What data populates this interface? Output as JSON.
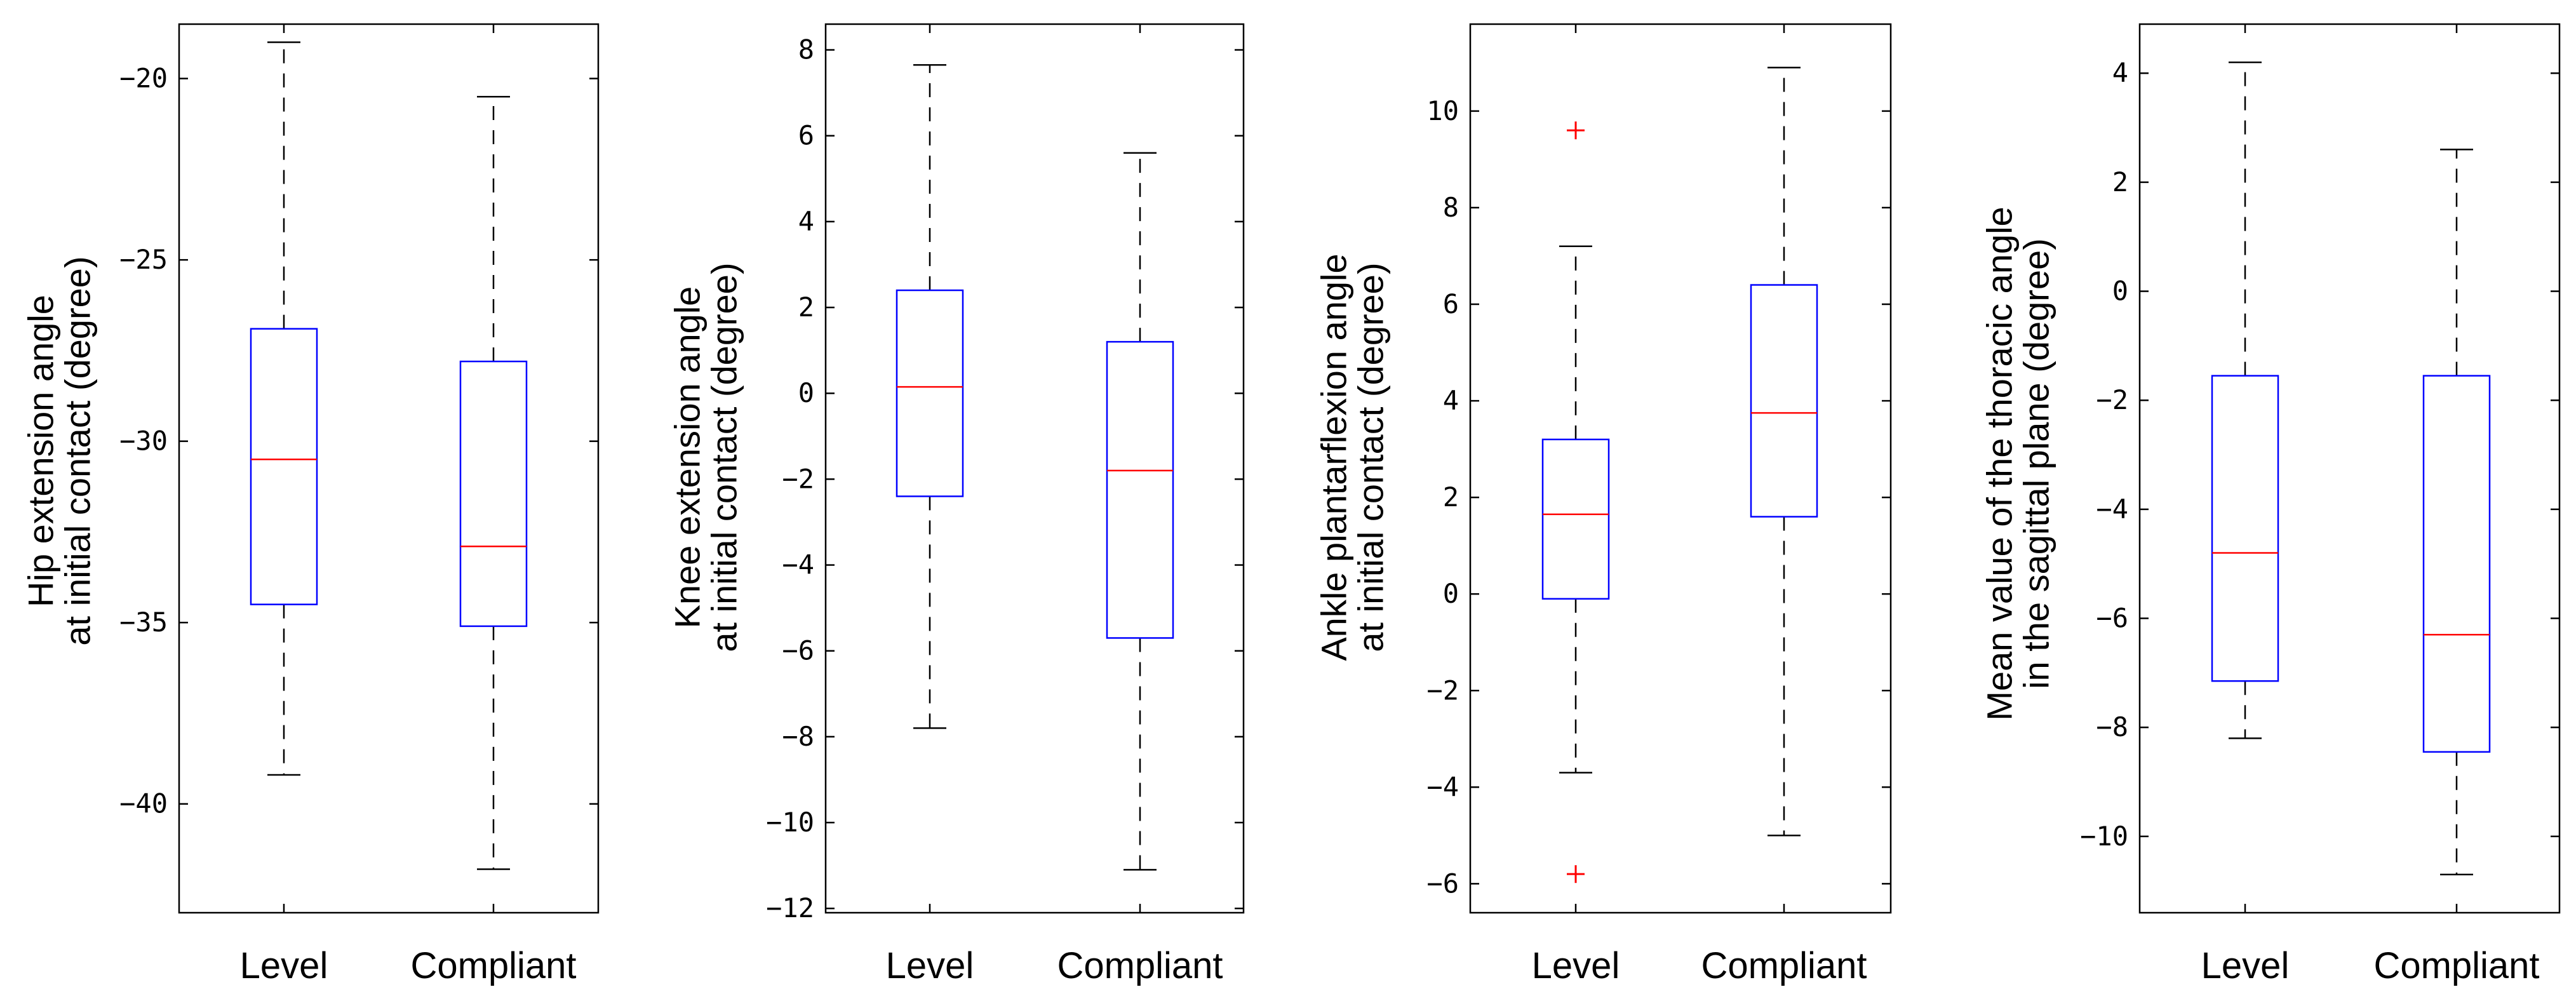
{
  "chart_data": [
    {
      "type": "box",
      "title": "",
      "ylabel": [
        "Hip extension angle",
        "at initial contact (degree)"
      ],
      "xlabel": "",
      "categories": [
        "Level",
        "Compliant"
      ],
      "ylim": [
        -43,
        -18.5
      ],
      "yticks": [
        -40,
        -35,
        -30,
        -25,
        -20
      ],
      "ytick_labels": [
        "−40",
        "−35",
        "−30",
        "−25",
        "−20"
      ],
      "series": [
        {
          "name": "Level",
          "whisker_low": -39.2,
          "q1": -34.5,
          "median": -30.5,
          "q3": -26.9,
          "whisker_high": -19.0,
          "outliers": []
        },
        {
          "name": "Compliant",
          "whisker_low": -41.8,
          "q1": -35.1,
          "median": -32.9,
          "q3": -27.8,
          "whisker_high": -20.5,
          "outliers": []
        }
      ]
    },
    {
      "type": "box",
      "title": "",
      "ylabel": [
        "Knee extension angle",
        "at initial contact (degree)"
      ],
      "xlabel": "",
      "categories": [
        "Level",
        "Compliant"
      ],
      "ylim": [
        -12.1,
        8.6
      ],
      "yticks": [
        -12,
        -10,
        -8,
        -6,
        -4,
        -2,
        0,
        2,
        4,
        6,
        8
      ],
      "ytick_labels": [
        "−12",
        "−10",
        "−8",
        "−6",
        "−4",
        "−2",
        "0",
        "2",
        "4",
        "6",
        "8"
      ],
      "series": [
        {
          "name": "Level",
          "whisker_low": -7.8,
          "q1": -2.4,
          "median": 0.15,
          "q3": 2.4,
          "whisker_high": 7.65,
          "outliers": []
        },
        {
          "name": "Compliant",
          "whisker_low": -11.1,
          "q1": -5.7,
          "median": -1.8,
          "q3": 1.2,
          "whisker_high": 5.6,
          "outliers": []
        }
      ]
    },
    {
      "type": "box",
      "title": "",
      "ylabel": [
        "Ankle plantarflexion angle",
        "at initial contact (degree)"
      ],
      "xlabel": "",
      "categories": [
        "Level",
        "Compliant"
      ],
      "ylim": [
        -6.6,
        11.8
      ],
      "yticks": [
        -6,
        -4,
        -2,
        0,
        2,
        4,
        6,
        8,
        10
      ],
      "ytick_labels": [
        "−6",
        "−4",
        "−2",
        "0",
        "2",
        "4",
        "6",
        "8",
        "10"
      ],
      "series": [
        {
          "name": "Level",
          "whisker_low": -3.7,
          "q1": -0.1,
          "median": 1.65,
          "q3": 3.2,
          "whisker_high": 7.2,
          "outliers": [
            9.6,
            -5.8
          ]
        },
        {
          "name": "Compliant",
          "whisker_low": -5.0,
          "q1": 1.6,
          "median": 3.75,
          "q3": 6.4,
          "whisker_high": 10.9,
          "outliers": []
        }
      ]
    },
    {
      "type": "box",
      "title": "",
      "ylabel": [
        "Mean value of the thoracic angle",
        "in the sagittal plane  (degree)"
      ],
      "xlabel": "",
      "categories": [
        "Level",
        "Compliant"
      ],
      "ylim": [
        -11.4,
        4.9
      ],
      "yticks": [
        -10,
        -8,
        -6,
        -4,
        -2,
        0,
        2,
        4
      ],
      "ytick_labels": [
        "−10",
        "−8",
        "−6",
        "−4",
        "−2",
        "0",
        "2",
        "4"
      ],
      "series": [
        {
          "name": "Level",
          "whisker_low": -8.2,
          "q1": -7.15,
          "median": -4.8,
          "q3": -1.55,
          "whisker_high": 4.2,
          "outliers": []
        },
        {
          "name": "Compliant",
          "whisker_low": -10.7,
          "q1": -8.45,
          "median": -6.3,
          "q3": -1.55,
          "whisker_high": 2.6,
          "outliers": []
        }
      ]
    }
  ]
}
